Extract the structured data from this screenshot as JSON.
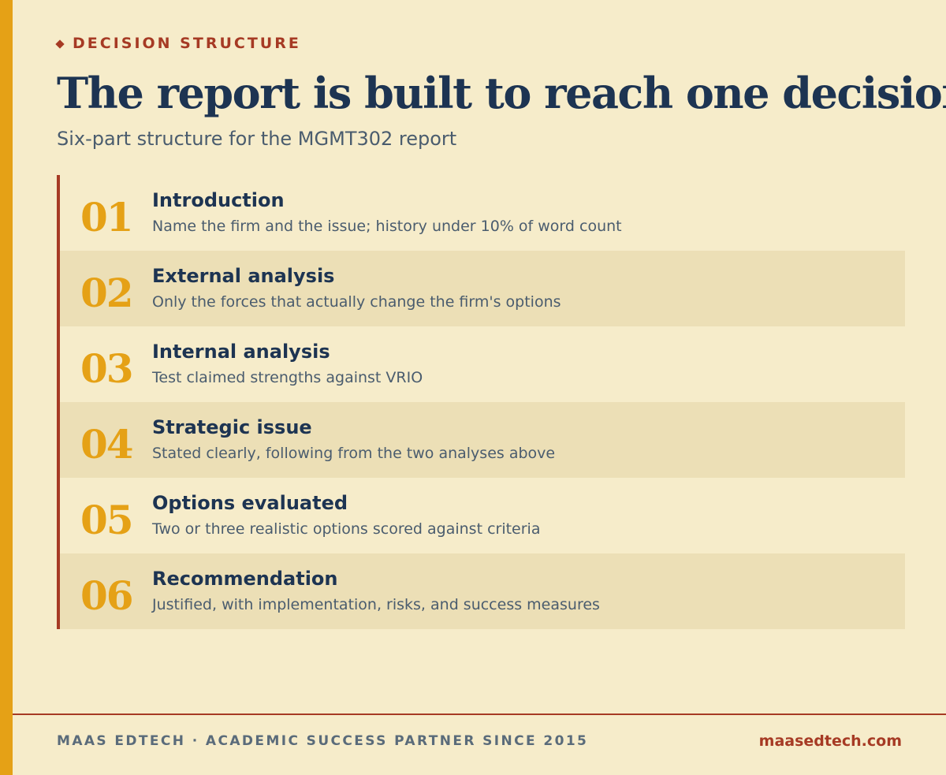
{
  "eyebrow": "DECISION STRUCTURE",
  "title": "The report is built to reach one decision",
  "subtitle": "Six-part structure for the MGMT302 report",
  "sections": [
    {
      "number": "01",
      "title": "Introduction",
      "description": "Name the firm and the issue; history under 10% of word count"
    },
    {
      "number": "02",
      "title": "External analysis",
      "description": "Only the forces that actually change the firm's options"
    },
    {
      "number": "03",
      "title": "Internal analysis",
      "description": "Test claimed strengths against VRIO"
    },
    {
      "number": "04",
      "title": "Strategic issue",
      "description": "Stated clearly, following from the two analyses above"
    },
    {
      "number": "05",
      "title": "Options evaluated",
      "description": "Two or three realistic options scored against criteria"
    },
    {
      "number": "06",
      "title": "Recommendation",
      "description": "Justified, with implementation, risks, and success measures"
    }
  ],
  "footer": {
    "tagline": "MAAS EDTECH · ACADEMIC SUCCESS PARTNER SINCE 2015",
    "website": "maasedtech.com"
  },
  "colors": {
    "background": "#f6ecca",
    "accent_gold": "#e5a116",
    "accent_red": "#a63a24",
    "navy": "#1d3452",
    "alt_row": "#ecdfb6"
  }
}
